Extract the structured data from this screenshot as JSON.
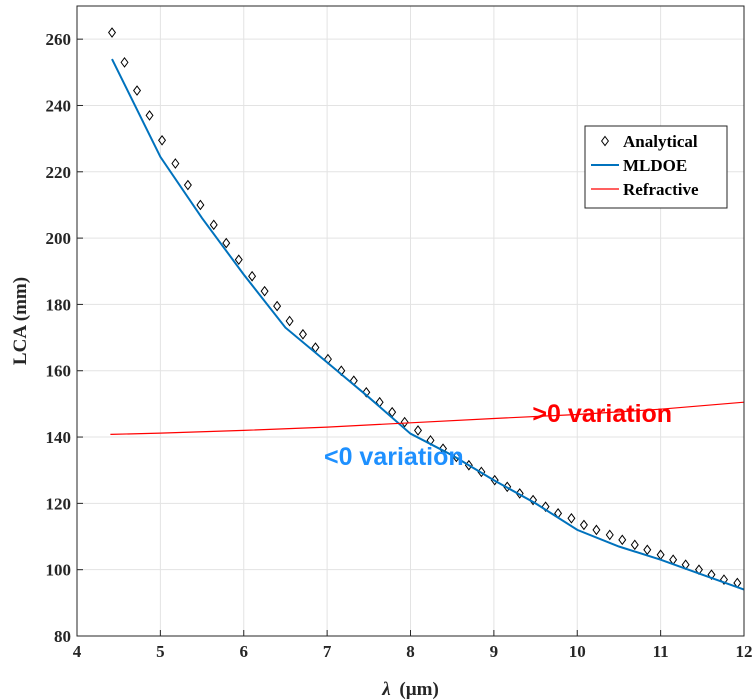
{
  "chart_data": {
    "type": "line",
    "xlabel_symbol": "λ",
    "xlabel_unit": "(µm)",
    "ylabel": "LCA (mm)",
    "xlim": [
      4,
      12
    ],
    "ylim": [
      80,
      270
    ],
    "xticks": [
      4,
      5,
      6,
      7,
      8,
      9,
      10,
      11,
      12
    ],
    "yticks": [
      80,
      100,
      120,
      140,
      160,
      180,
      200,
      220,
      240,
      260
    ],
    "grid": true,
    "legend_position": "top-right",
    "series": [
      {
        "name": "Analytical",
        "style": "markers",
        "marker": "diamond",
        "color": "#000000",
        "x": [
          4.42,
          4.57,
          4.72,
          4.87,
          5.02,
          5.18,
          5.33,
          5.48,
          5.64,
          5.79,
          5.94,
          6.1,
          6.25,
          6.4,
          6.55,
          6.71,
          6.86,
          7.01,
          7.17,
          7.32,
          7.47,
          7.63,
          7.78,
          7.93,
          8.09,
          8.24,
          8.39,
          8.55,
          8.7,
          8.85,
          9.01,
          9.16,
          9.31,
          9.47,
          9.62,
          9.77,
          9.93,
          10.08,
          10.23,
          10.39,
          10.54,
          10.69,
          10.84,
          11.0,
          11.15,
          11.3,
          11.46,
          11.61,
          11.76,
          11.92
        ],
        "y": [
          262,
          253,
          244.5,
          237,
          229.5,
          222.5,
          216,
          210,
          204,
          198.5,
          193.5,
          188.5,
          184,
          179.5,
          175,
          171,
          167,
          163.5,
          160,
          157,
          153.5,
          150.5,
          147.5,
          144.5,
          142,
          139,
          136.5,
          134,
          131.5,
          129.5,
          127,
          125,
          123,
          121,
          119,
          117,
          115.5,
          113.5,
          112,
          110.5,
          109,
          107.5,
          106,
          104.5,
          103,
          101.5,
          100,
          98.5,
          97,
          96
        ]
      },
      {
        "name": "MLDOE",
        "style": "line",
        "color": "#0072BD",
        "x": [
          4.42,
          5.0,
          5.5,
          6.0,
          6.5,
          7.0,
          7.5,
          8.0,
          8.5,
          9.0,
          9.5,
          10.0,
          10.5,
          11.0,
          11.5,
          12.0
        ],
        "y": [
          254,
          224.5,
          206,
          189,
          173,
          162.5,
          152,
          141,
          134.5,
          127,
          120,
          112,
          107,
          103,
          98.5,
          94
        ]
      },
      {
        "name": "Refractive",
        "style": "line",
        "color": "#FF0000",
        "x": [
          4.4,
          5.0,
          6.0,
          7.0,
          8.0,
          9.0,
          10.0,
          11.0,
          12.0
        ],
        "y": [
          140.8,
          141.2,
          142.0,
          143.0,
          144.3,
          145.6,
          146.8,
          148.4,
          150.5
        ]
      }
    ],
    "annotations": [
      {
        "text": ">0 variation",
        "x": 10.3,
        "y": 144.5,
        "color": "#FF0000"
      },
      {
        "text": "<0 variation",
        "x": 7.8,
        "y": 131.5,
        "color": "#1E90FF"
      }
    ]
  }
}
